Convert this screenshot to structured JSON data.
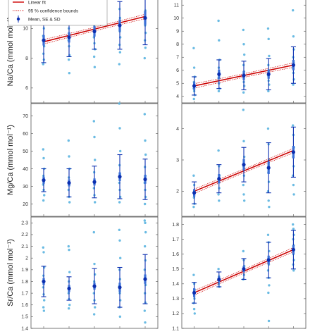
{
  "legend": {
    "items": [
      {
        "label": "Linear fit",
        "style": "line",
        "color": "#cc0000"
      },
      {
        "label": "95 % confidence bounds",
        "style": "dotted",
        "color": "#cc0000"
      },
      {
        "label": "Mean, SE & SD",
        "style": "errorbar",
        "color": "#0b2fb0"
      }
    ]
  },
  "colors": {
    "raw_points": "#5ab4e0",
    "mean_marker": "#0b2fb0",
    "sd_bar": "#0b2fb0",
    "se_bar": "#3a6fd8",
    "fit_line": "#cc0000",
    "axes": "#555555"
  },
  "chart_data": [
    {
      "type": "scatter",
      "panel": "top-left",
      "ylabel": "Na/Ca (mmol mol⁻¹)",
      "ylim": [
        5,
        12
      ],
      "yticks": [
        "6",
        "8",
        "10",
        "12"
      ],
      "x": [
        1,
        2,
        3,
        4,
        5
      ],
      "xlim": [
        0.5,
        5.5
      ],
      "means": [
        9.2,
        9.4,
        9.8,
        10.2,
        10.7
      ],
      "se": [
        0.35,
        0.35,
        0.35,
        0.4,
        0.45
      ],
      "sd": [
        1.5,
        1.3,
        1.2,
        1.6,
        1.8
      ],
      "fit": {
        "shown": true,
        "y_start": 9.1,
        "y_end": 10.8
      },
      "raw": [
        [
          12.8,
          12.2,
          11.0,
          10.6,
          10.0,
          9.5,
          9.1,
          8.8,
          8.3,
          7.9,
          7.6
        ],
        [
          11.8,
          11.2,
          10.6,
          10.0,
          9.6,
          9.2,
          8.8,
          8.2,
          7.9,
          7.0
        ],
        [
          11.9,
          11.2,
          10.8,
          10.2,
          9.8,
          9.4,
          9.0,
          8.6,
          8.1,
          7.4
        ],
        [
          14.5,
          13.6,
          12.2,
          11.3,
          10.7,
          10.2,
          9.8,
          9.4,
          8.9,
          8.4,
          7.6
        ],
        [
          14.9,
          14.6,
          13.0,
          12.2,
          11.2,
          10.7,
          10.2,
          9.7,
          9.2,
          8.7,
          8.0
        ]
      ]
    },
    {
      "type": "scatter",
      "panel": "top-right",
      "ylabel": "",
      "ylim": [
        3.5,
        11.5
      ],
      "yticks": [
        "4",
        "5",
        "6",
        "7",
        "8",
        "9",
        "10",
        "11"
      ],
      "x": [
        1,
        2,
        3,
        4,
        5
      ],
      "xlim": [
        0.5,
        5.5
      ],
      "means": [
        4.8,
        5.7,
        5.6,
        5.7,
        6.4
      ],
      "se": [
        0.3,
        0.35,
        0.35,
        0.35,
        0.4
      ],
      "sd": [
        0.7,
        1.1,
        1.1,
        1.2,
        1.4
      ],
      "fit": {
        "shown": true,
        "y_start": 4.8,
        "y_end": 6.4
      },
      "raw": [
        [
          7.7,
          6.2,
          5.5,
          5.1,
          4.8,
          4.6,
          4.4,
          4.1,
          3.8
        ],
        [
          9.8,
          8.3,
          6.8,
          6.2,
          5.8,
          5.4,
          5.0,
          4.6,
          4.4
        ],
        [
          9.1,
          8.0,
          7.2,
          6.4,
          5.9,
          5.5,
          5.1,
          4.8,
          4.3
        ],
        [
          9.2,
          8.4,
          7.1,
          6.4,
          6.0,
          5.6,
          5.2,
          4.9,
          4.4
        ],
        [
          10.6,
          8.6,
          7.6,
          7.0,
          6.6,
          6.2,
          5.8,
          5.3,
          4.9
        ]
      ]
    },
    {
      "type": "scatter",
      "panel": "middle-left",
      "ylabel": "Mg/Ca (mmol mol⁻¹)",
      "ylim": [
        13,
        77
      ],
      "yticks": [
        "20",
        "30",
        "40",
        "50",
        "60",
        "70"
      ],
      "x": [
        1,
        2,
        3,
        4,
        5
      ],
      "xlim": [
        0.5,
        5.5
      ],
      "means": [
        33.5,
        32.0,
        32.5,
        35.5,
        34.0
      ],
      "se": [
        2.0,
        2.0,
        2.0,
        2.5,
        2.5
      ],
      "sd": [
        6.5,
        8.0,
        9.0,
        12.5,
        11.5
      ],
      "fit": {
        "shown": false
      },
      "raw": [
        [
          51,
          46,
          40,
          36,
          34,
          31,
          28,
          25,
          22
        ],
        [
          56,
          47,
          40,
          35,
          31,
          28,
          24,
          21
        ],
        [
          67,
          58,
          45,
          38,
          33,
          29,
          25,
          21
        ],
        [
          77,
          63,
          50,
          42,
          37,
          32,
          28,
          24,
          21
        ],
        [
          71,
          56,
          48,
          41,
          36,
          32,
          28,
          24,
          20
        ]
      ]
    },
    {
      "type": "scatter",
      "panel": "middle-right",
      "ylabel": "",
      "ylim": [
        1.2,
        4.8
      ],
      "yticks": [
        "2",
        "3",
        "4"
      ],
      "x": [
        1,
        2,
        3,
        4,
        5
      ],
      "xlim": [
        0.5,
        5.5
      ],
      "means": [
        1.95,
        2.4,
        2.85,
        2.75,
        3.25
      ],
      "se": [
        0.12,
        0.15,
        0.18,
        0.2,
        0.2
      ],
      "sd": [
        0.35,
        0.45,
        0.55,
        0.8,
        0.8
      ],
      "fit": {
        "shown": true,
        "y_start": 2.0,
        "y_end": 3.3
      },
      "raw": [
        [
          2.5,
          2.2,
          2.0,
          1.8,
          1.6,
          1.5
        ],
        [
          3.3,
          2.8,
          2.5,
          2.3,
          2.1,
          1.9,
          1.7
        ],
        [
          4.6,
          3.6,
          3.1,
          2.8,
          2.5,
          2.2,
          1.9,
          1.7
        ],
        [
          4.0,
          3.5,
          3.0,
          2.6,
          2.3,
          2.0,
          1.7,
          1.5
        ],
        [
          4.1,
          3.8,
          3.4,
          3.1,
          2.8,
          2.5,
          2.2,
          1.9
        ]
      ]
    },
    {
      "type": "scatter",
      "panel": "bottom-left",
      "ylabel": "Sr/Ca (mmol mol⁻¹)",
      "ylim": [
        1.4,
        2.35
      ],
      "yticks": [
        "1.4",
        "1.5",
        "1.6",
        "1.7",
        "1.8",
        "1.9",
        "2",
        "2.1",
        "2.2",
        "2.3"
      ],
      "x": [
        1,
        2,
        3,
        4,
        5
      ],
      "xlim": [
        0.5,
        5.5
      ],
      "means": [
        1.8,
        1.74,
        1.76,
        1.75,
        1.82
      ],
      "se": [
        0.03,
        0.03,
        0.03,
        0.04,
        0.04
      ],
      "sd": [
        0.13,
        0.1,
        0.15,
        0.17,
        0.21
      ],
      "fit": {
        "shown": false
      },
      "raw": [
        [
          2.09,
          2.05,
          1.92,
          1.85,
          1.8,
          1.75,
          1.69,
          1.64,
          1.58,
          1.55
        ],
        [
          2.1,
          2.07,
          1.88,
          1.8,
          1.75,
          1.7,
          1.65,
          1.6,
          1.57
        ],
        [
          2.22,
          1.95,
          1.86,
          1.8,
          1.75,
          1.7,
          1.64,
          1.58,
          1.52
        ],
        [
          2.24,
          2.15,
          2.0,
          1.9,
          1.82,
          1.76,
          1.7,
          1.64,
          1.58,
          1.5
        ],
        [
          2.32,
          2.3,
          2.22,
          2.1,
          1.98,
          1.9,
          1.83,
          1.77,
          1.7,
          1.62,
          1.55,
          1.45
        ]
      ]
    },
    {
      "type": "scatter",
      "panel": "bottom-right",
      "ylabel": "",
      "ylim": [
        1.1,
        1.85
      ],
      "yticks": [
        "1.1",
        "1.2",
        "1.3",
        "1.4",
        "1.5",
        "1.6",
        "1.7",
        "1.8"
      ],
      "x": [
        1,
        2,
        3,
        4,
        5
      ],
      "xlim": [
        0.5,
        5.5
      ],
      "means": [
        1.34,
        1.43,
        1.5,
        1.56,
        1.63
      ],
      "se": [
        0.03,
        0.02,
        0.02,
        0.03,
        0.03
      ],
      "sd": [
        0.07,
        0.05,
        0.07,
        0.12,
        0.13
      ],
      "fit": {
        "shown": true,
        "y_start": 1.34,
        "y_end": 1.63
      },
      "raw": [
        [
          1.46,
          1.4,
          1.36,
          1.33,
          1.3,
          1.27,
          1.23,
          1.2
        ],
        [
          1.5,
          1.45,
          1.43,
          1.4,
          1.38
        ],
        [
          1.62,
          1.56,
          1.52,
          1.49,
          1.46,
          1.43
        ],
        [
          1.73,
          1.68,
          1.62,
          1.57,
          1.53,
          1.49,
          1.44,
          1.39,
          1.34,
          1.15
        ],
        [
          1.8,
          1.77,
          1.73,
          1.7,
          1.66,
          1.63,
          1.6,
          1.56,
          1.53,
          1.49
        ]
      ]
    }
  ]
}
